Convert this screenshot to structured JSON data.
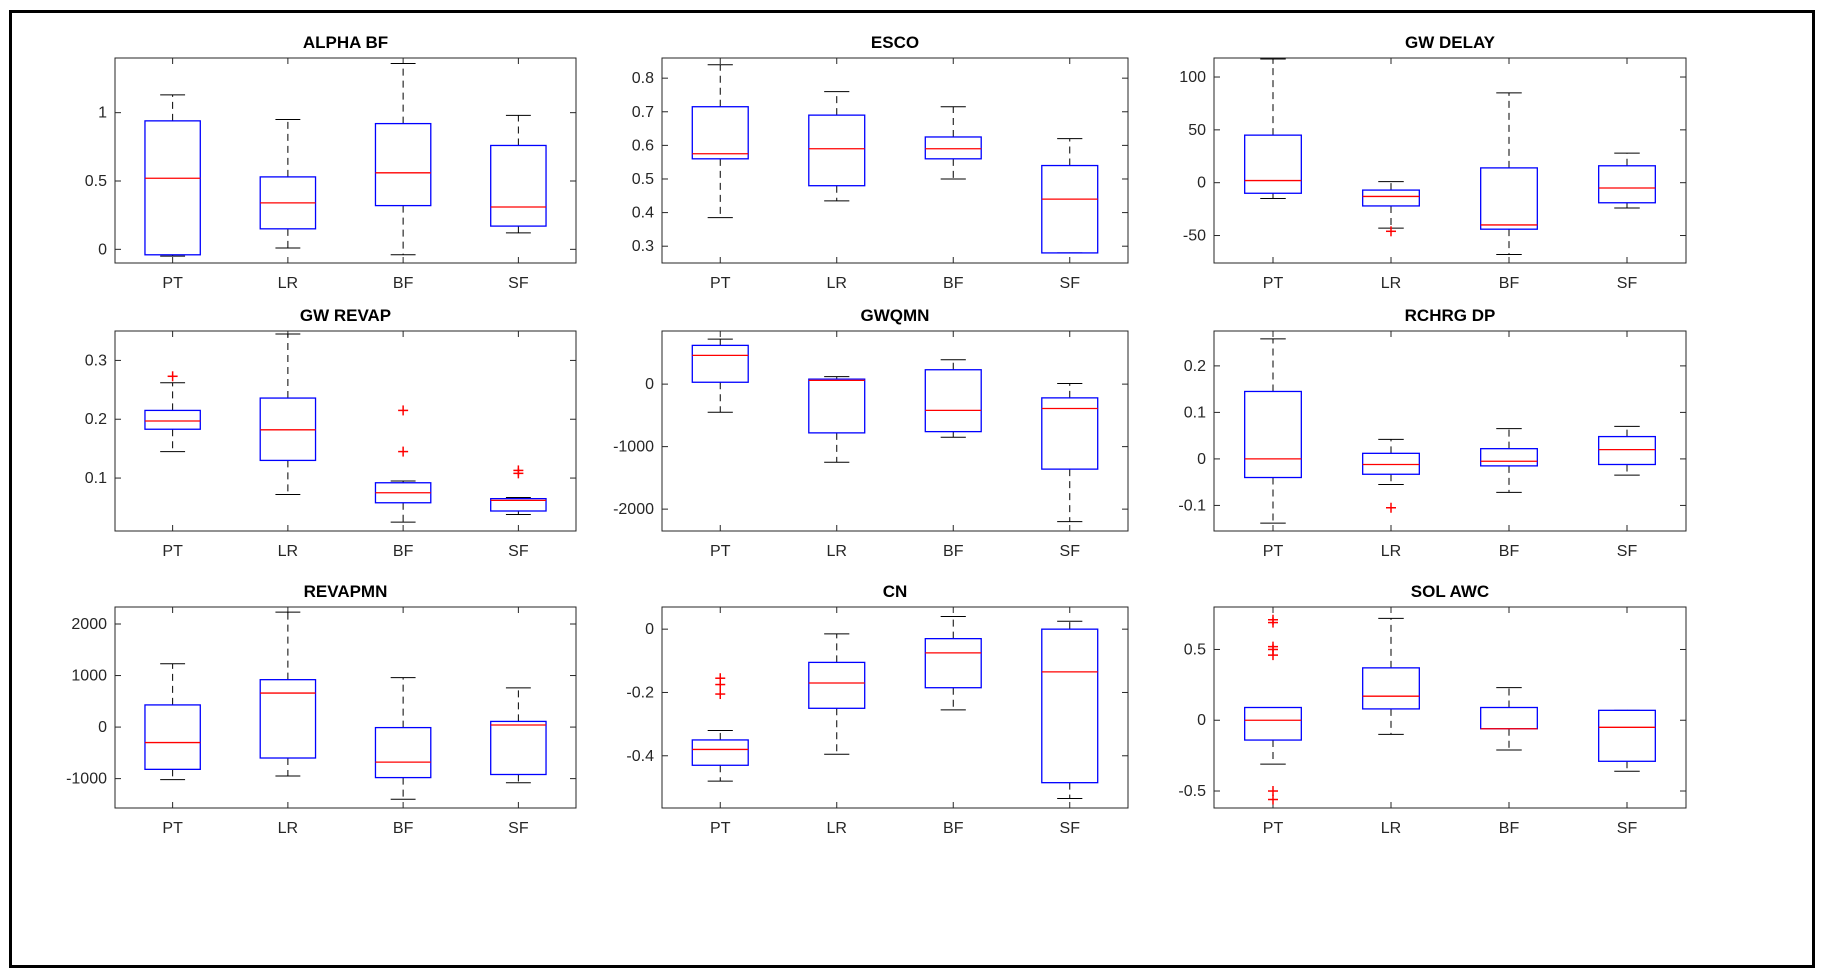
{
  "colors": {
    "box": "#0000ff",
    "median": "#ff0000",
    "whisker": "#000000",
    "outlier": "#ff0000",
    "axis": "#262626"
  },
  "chart_data": [
    {
      "type": "boxplot",
      "title": "ALPHA BF",
      "categories": [
        "PT",
        "LR",
        "BF",
        "SF"
      ],
      "ylim": [
        -0.1,
        1.4
      ],
      "yticks": [
        0,
        0.5,
        1
      ],
      "ytick_labels": [
        "0",
        "0.5",
        "1"
      ],
      "boxes": [
        {
          "q1": -0.04,
          "median": 0.52,
          "q3": 0.94,
          "whisker_low": -0.05,
          "whisker_high": 1.13,
          "outliers": []
        },
        {
          "q1": 0.15,
          "median": 0.34,
          "q3": 0.53,
          "whisker_low": 0.01,
          "whisker_high": 0.95,
          "outliers": []
        },
        {
          "q1": 0.32,
          "median": 0.56,
          "q3": 0.92,
          "whisker_low": -0.04,
          "whisker_high": 1.36,
          "outliers": []
        },
        {
          "q1": 0.17,
          "median": 0.31,
          "q3": 0.76,
          "whisker_low": 0.12,
          "whisker_high": 0.98,
          "outliers": []
        }
      ]
    },
    {
      "type": "boxplot",
      "title": "ESCO",
      "categories": [
        "PT",
        "LR",
        "BF",
        "SF"
      ],
      "ylim": [
        0.25,
        0.86
      ],
      "yticks": [
        0.3,
        0.4,
        0.5,
        0.6,
        0.7,
        0.8
      ],
      "ytick_labels": [
        "0.3",
        "0.4",
        "0.5",
        "0.6",
        "0.7",
        "0.8"
      ],
      "boxes": [
        {
          "q1": 0.56,
          "median": 0.575,
          "q3": 0.715,
          "whisker_low": 0.385,
          "whisker_high": 0.84,
          "outliers": []
        },
        {
          "q1": 0.48,
          "median": 0.59,
          "q3": 0.69,
          "whisker_low": 0.435,
          "whisker_high": 0.76,
          "outliers": []
        },
        {
          "q1": 0.56,
          "median": 0.59,
          "q3": 0.625,
          "whisker_low": 0.5,
          "whisker_high": 0.715,
          "outliers": []
        },
        {
          "q1": 0.28,
          "median": 0.44,
          "q3": 0.54,
          "whisker_low": 0.28,
          "whisker_high": 0.62,
          "outliers": []
        }
      ]
    },
    {
      "type": "boxplot",
      "title": "GW DELAY",
      "categories": [
        "PT",
        "LR",
        "BF",
        "SF"
      ],
      "ylim": [
        -76,
        118
      ],
      "yticks": [
        -50,
        0,
        50,
        100
      ],
      "ytick_labels": [
        "-50",
        "0",
        "50",
        "100"
      ],
      "boxes": [
        {
          "q1": -10,
          "median": 2,
          "q3": 45,
          "whisker_low": -15,
          "whisker_high": 117,
          "outliers": []
        },
        {
          "q1": -22,
          "median": -13,
          "q3": -7,
          "whisker_low": -43,
          "whisker_high": 1,
          "outliers": [
            -46
          ]
        },
        {
          "q1": -44,
          "median": -40,
          "q3": 14,
          "whisker_low": -68,
          "whisker_high": 85,
          "outliers": []
        },
        {
          "q1": -19,
          "median": -5,
          "q3": 16,
          "whisker_low": -24,
          "whisker_high": 28,
          "outliers": []
        }
      ]
    },
    {
      "type": "boxplot",
      "title": "GW REVAP",
      "categories": [
        "PT",
        "LR",
        "BF",
        "SF"
      ],
      "ylim": [
        0.01,
        0.35
      ],
      "yticks": [
        0.1,
        0.2,
        0.3
      ],
      "ytick_labels": [
        "0.1",
        "0.2",
        "0.3"
      ],
      "boxes": [
        {
          "q1": 0.183,
          "median": 0.197,
          "q3": 0.215,
          "whisker_low": 0.145,
          "whisker_high": 0.262,
          "outliers": [
            0.273
          ]
        },
        {
          "q1": 0.13,
          "median": 0.182,
          "q3": 0.236,
          "whisker_low": 0.072,
          "whisker_high": 0.345,
          "outliers": []
        },
        {
          "q1": 0.058,
          "median": 0.075,
          "q3": 0.092,
          "whisker_low": 0.025,
          "whisker_high": 0.095,
          "outliers": [
            0.145,
            0.215
          ]
        },
        {
          "q1": 0.044,
          "median": 0.062,
          "q3": 0.065,
          "whisker_low": 0.038,
          "whisker_high": 0.067,
          "outliers": [
            0.108,
            0.113
          ]
        }
      ]
    },
    {
      "type": "boxplot",
      "title": "GWQMN",
      "categories": [
        "PT",
        "LR",
        "BF",
        "SF"
      ],
      "ylim": [
        -2350,
        850
      ],
      "yticks": [
        -2000,
        -1000,
        0
      ],
      "ytick_labels": [
        "-2000",
        "-1000",
        "0"
      ],
      "boxes": [
        {
          "q1": 30,
          "median": 460,
          "q3": 620,
          "whisker_low": -450,
          "whisker_high": 720,
          "outliers": []
        },
        {
          "q1": -780,
          "median": 60,
          "q3": 80,
          "whisker_low": -1250,
          "whisker_high": 120,
          "outliers": []
        },
        {
          "q1": -760,
          "median": -420,
          "q3": 230,
          "whisker_low": -850,
          "whisker_high": 390,
          "outliers": []
        },
        {
          "q1": -1360,
          "median": -390,
          "q3": -220,
          "whisker_low": -2200,
          "whisker_high": 10,
          "outliers": []
        }
      ]
    },
    {
      "type": "boxplot",
      "title": "RCHRG DP",
      "categories": [
        "PT",
        "LR",
        "BF",
        "SF"
      ],
      "ylim": [
        -0.155,
        0.275
      ],
      "yticks": [
        -0.1,
        0,
        0.1,
        0.2
      ],
      "ytick_labels": [
        "-0.1",
        "0",
        "0.1",
        "0.2"
      ],
      "boxes": [
        {
          "q1": -0.04,
          "median": 0.0,
          "q3": 0.145,
          "whisker_low": -0.138,
          "whisker_high": 0.258,
          "outliers": []
        },
        {
          "q1": -0.033,
          "median": -0.012,
          "q3": 0.012,
          "whisker_low": -0.055,
          "whisker_high": 0.042,
          "outliers": [
            -0.105
          ]
        },
        {
          "q1": -0.015,
          "median": -0.005,
          "q3": 0.022,
          "whisker_low": -0.072,
          "whisker_high": 0.065,
          "outliers": []
        },
        {
          "q1": -0.012,
          "median": 0.02,
          "q3": 0.048,
          "whisker_low": -0.035,
          "whisker_high": 0.07,
          "outliers": []
        }
      ]
    },
    {
      "type": "boxplot",
      "title": "REVAPMN",
      "categories": [
        "PT",
        "LR",
        "BF",
        "SF"
      ],
      "ylim": [
        -1570,
        2330
      ],
      "yticks": [
        -1000,
        0,
        1000,
        2000
      ],
      "ytick_labels": [
        "-1000",
        "0",
        "1000",
        "2000"
      ],
      "boxes": [
        {
          "q1": -820,
          "median": -300,
          "q3": 430,
          "whisker_low": -1020,
          "whisker_high": 1230,
          "outliers": []
        },
        {
          "q1": -600,
          "median": 660,
          "q3": 920,
          "whisker_low": -950,
          "whisker_high": 2230,
          "outliers": []
        },
        {
          "q1": -980,
          "median": -680,
          "q3": -10,
          "whisker_low": -1400,
          "whisker_high": 960,
          "outliers": []
        },
        {
          "q1": -920,
          "median": 40,
          "q3": 110,
          "whisker_low": -1080,
          "whisker_high": 760,
          "outliers": []
        }
      ]
    },
    {
      "type": "boxplot",
      "title": "CN",
      "categories": [
        "PT",
        "LR",
        "BF",
        "SF"
      ],
      "ylim": [
        -0.565,
        0.07
      ],
      "yticks": [
        -0.4,
        -0.2,
        0
      ],
      "ytick_labels": [
        "-0.4",
        "-0.2",
        "0"
      ],
      "boxes": [
        {
          "q1": -0.43,
          "median": -0.38,
          "q3": -0.35,
          "whisker_low": -0.48,
          "whisker_high": -0.32,
          "outliers": [
            -0.155,
            -0.175,
            -0.205
          ]
        },
        {
          "q1": -0.25,
          "median": -0.17,
          "q3": -0.105,
          "whisker_low": -0.395,
          "whisker_high": -0.015,
          "outliers": []
        },
        {
          "q1": -0.185,
          "median": -0.075,
          "q3": -0.03,
          "whisker_low": -0.255,
          "whisker_high": 0.04,
          "outliers": []
        },
        {
          "q1": -0.485,
          "median": -0.135,
          "q3": 0.0,
          "whisker_low": -0.535,
          "whisker_high": 0.025,
          "outliers": []
        }
      ]
    },
    {
      "type": "boxplot",
      "title": "SOL AWC",
      "categories": [
        "PT",
        "LR",
        "BF",
        "SF"
      ],
      "ylim": [
        -0.62,
        0.8
      ],
      "yticks": [
        -0.5,
        0,
        0.5
      ],
      "ytick_labels": [
        "-0.5",
        "0",
        "0.5"
      ],
      "boxes": [
        {
          "q1": -0.14,
          "median": 0.0,
          "q3": 0.09,
          "whisker_low": -0.31,
          "whisker_high": 0.09,
          "outliers": [
            0.69,
            0.71,
            0.5,
            0.46,
            0.52,
            -0.5,
            -0.56
          ]
        },
        {
          "q1": 0.08,
          "median": 0.17,
          "q3": 0.37,
          "whisker_low": -0.1,
          "whisker_high": 0.72,
          "outliers": []
        },
        {
          "q1": -0.06,
          "median": -0.06,
          "q3": 0.09,
          "whisker_low": -0.21,
          "whisker_high": 0.23,
          "outliers": []
        },
        {
          "q1": -0.29,
          "median": -0.05,
          "q3": 0.07,
          "whisker_low": -0.36,
          "whisker_high": 0.07,
          "outliers": []
        }
      ]
    }
  ]
}
